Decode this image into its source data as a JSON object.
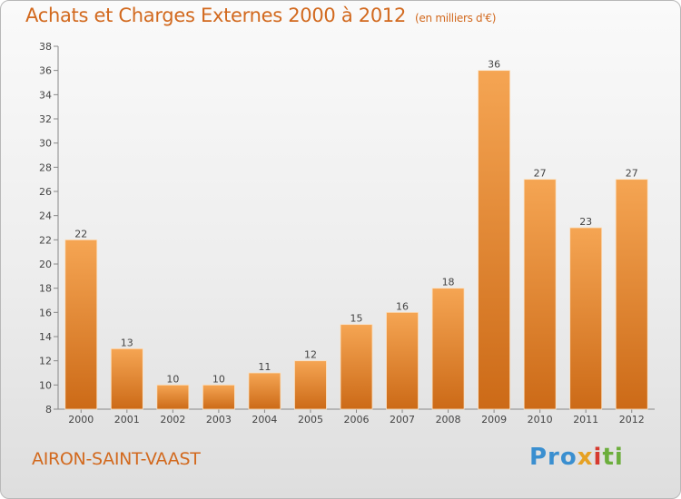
{
  "title": "Achats et Charges Externes 2000 à 2012",
  "unit": "(en milliers d'€)",
  "commune": "AIRON-SAINT-VAAST",
  "logo": {
    "p1": "Pro",
    "p2": "x",
    "p3": "i",
    "p4": "ti"
  },
  "colors": {
    "title": "#d2691e",
    "bar_top": "#f5a553",
    "bar_bottom": "#cc6a17"
  },
  "chart_data": {
    "type": "bar",
    "categories": [
      "2000",
      "2001",
      "2002",
      "2003",
      "2004",
      "2005",
      "2006",
      "2007",
      "2008",
      "2009",
      "2010",
      "2011",
      "2012"
    ],
    "values": [
      22,
      13,
      10,
      10,
      11,
      12,
      15,
      16,
      18,
      36,
      27,
      23,
      27
    ],
    "data_labels": [
      "22",
      "13",
      "10",
      "10",
      "11",
      "12",
      "15",
      "16",
      "18",
      "36",
      "27",
      "23",
      "27"
    ],
    "ylim": [
      8,
      38
    ],
    "yticks": [
      "8",
      "10",
      "12",
      "14",
      "16",
      "18",
      "20",
      "22",
      "24",
      "26",
      "28",
      "30",
      "32",
      "34",
      "36",
      "38"
    ],
    "grid": false,
    "xlabel": "",
    "ylabel": ""
  }
}
